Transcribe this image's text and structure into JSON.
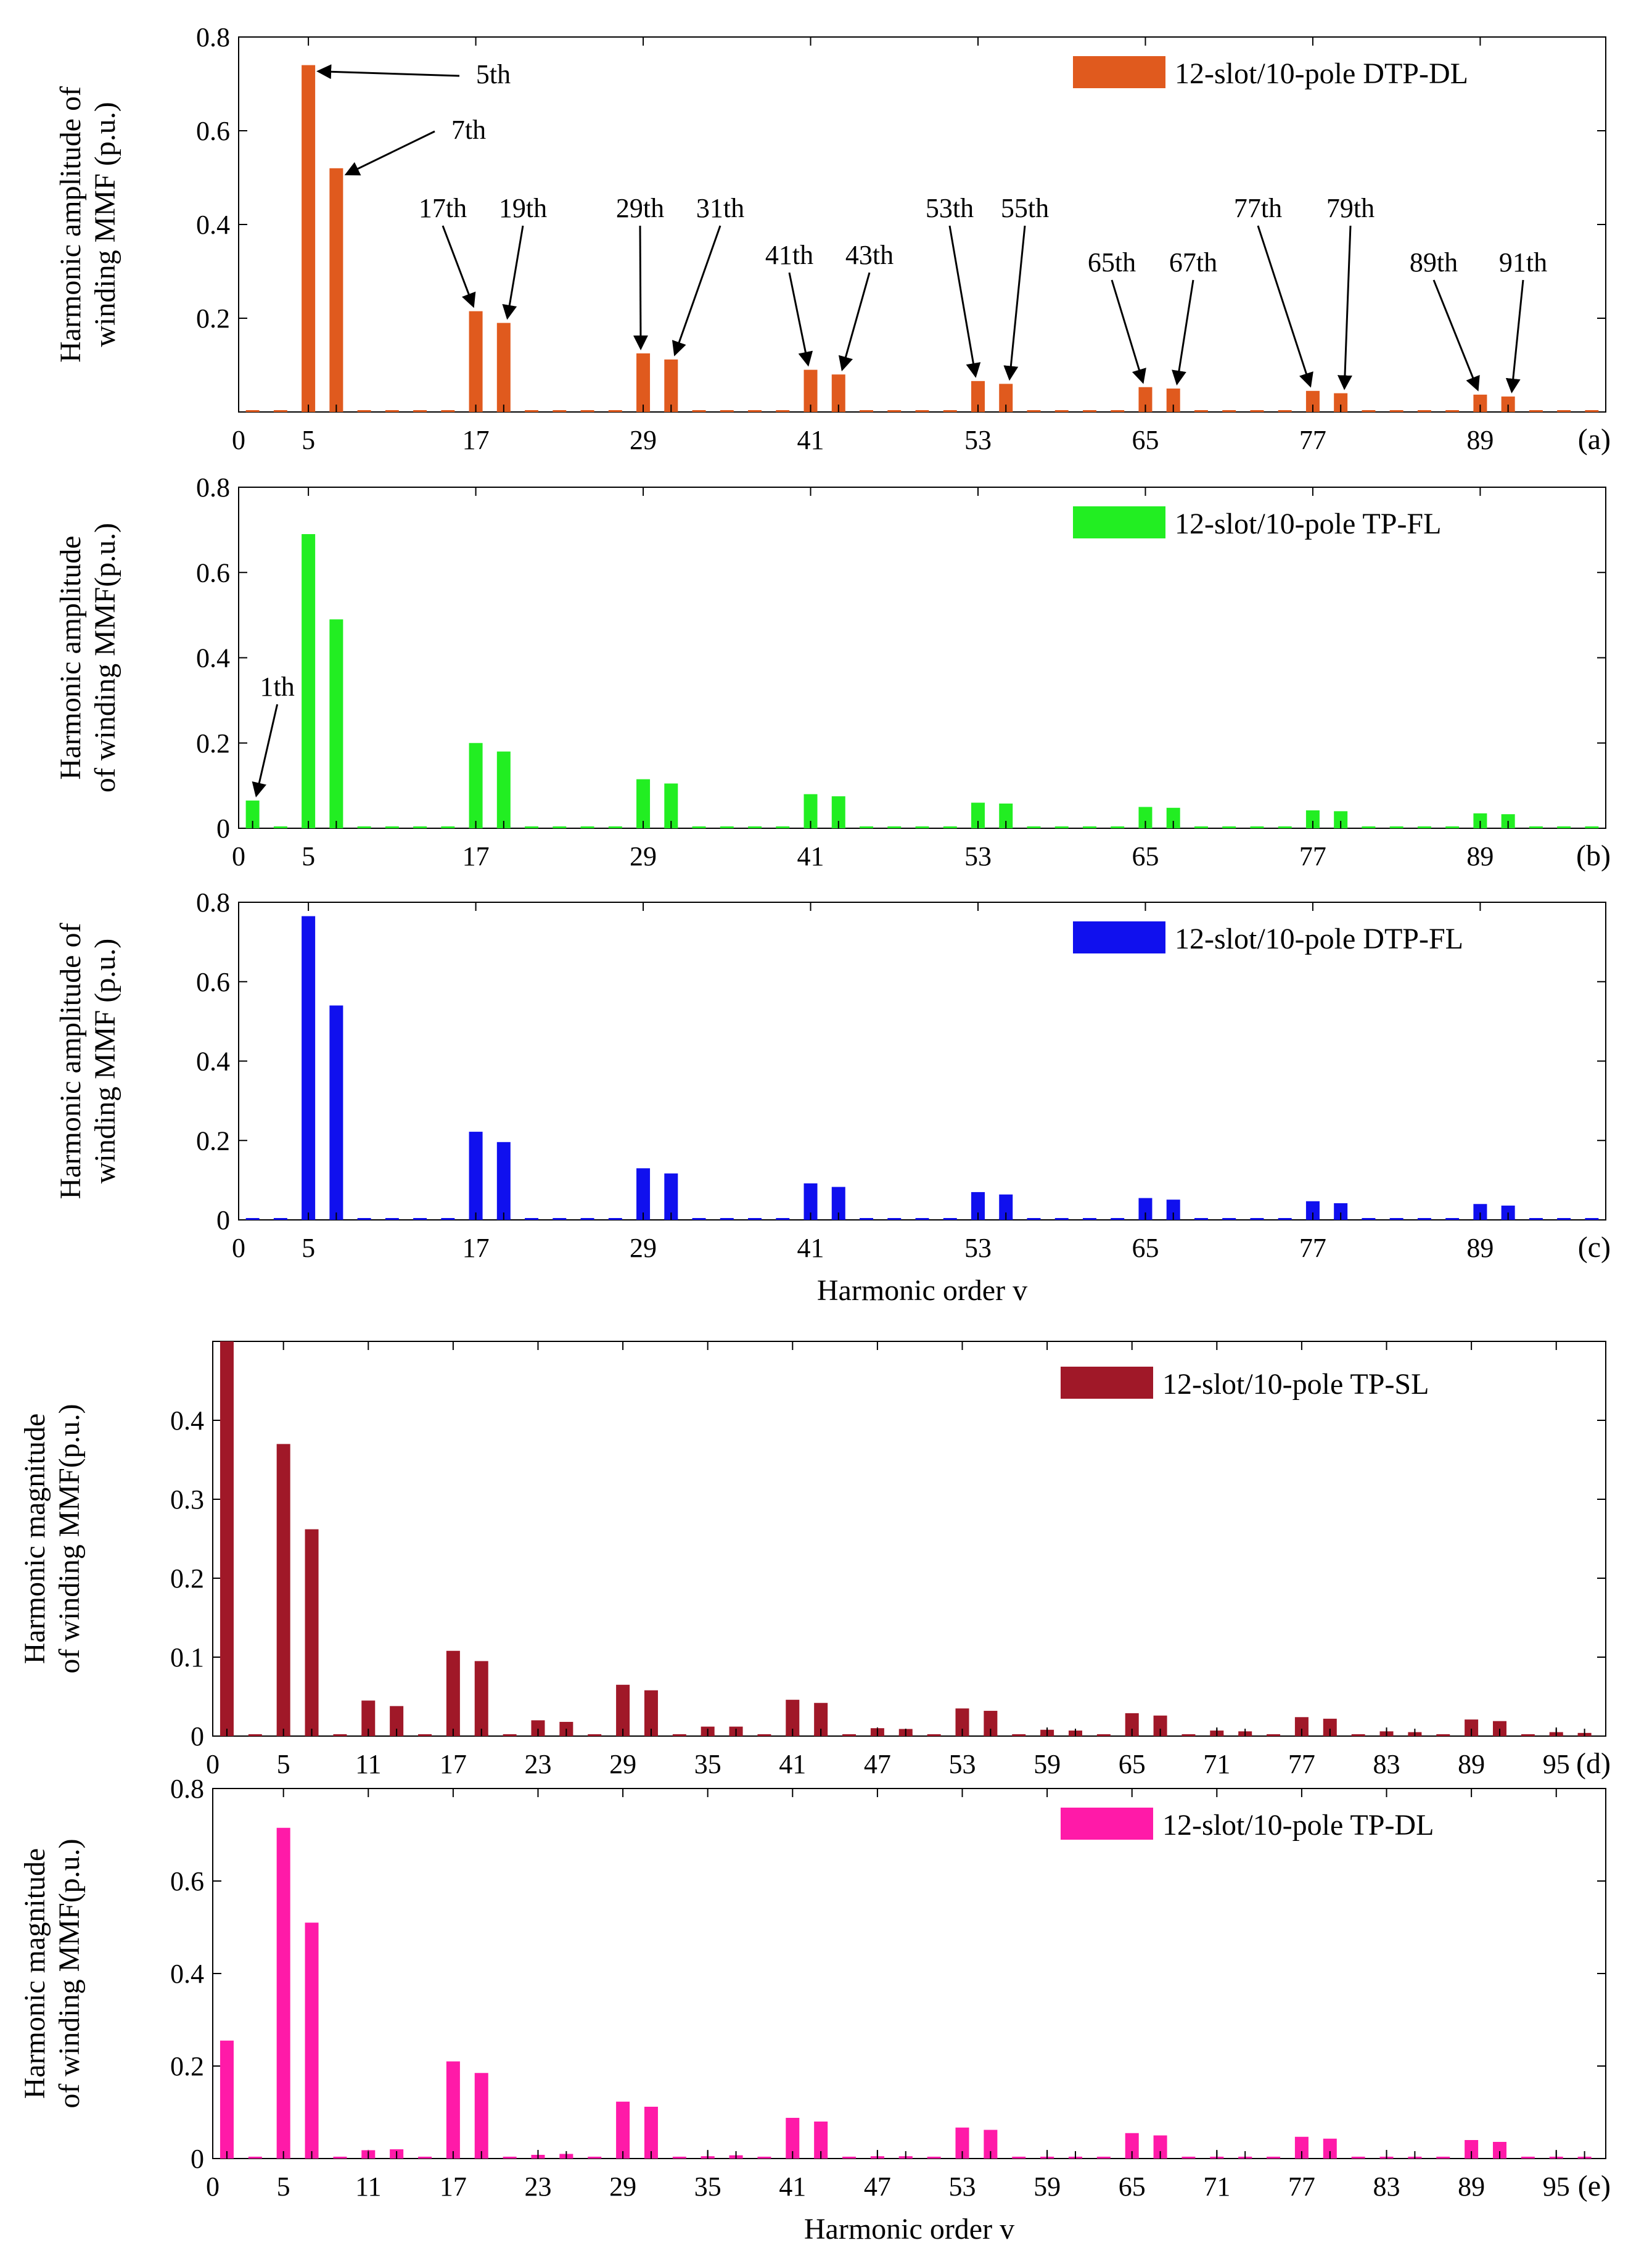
{
  "chart_data": [
    {
      "id": "a",
      "type": "bar",
      "panel_label": "(a)",
      "legend": "12-slot/10-pole DTP-DL",
      "color": "#E05A1E",
      "ylabel_lines": [
        "Harmonic amplitude of",
        "winding MMF (p.u.)"
      ],
      "xlabel": "",
      "xlim": [
        0,
        98
      ],
      "ylim": [
        0,
        0.8
      ],
      "yticks": [
        0.2,
        0.4,
        0.6,
        0.8
      ],
      "ytick_labels": [
        "0.2",
        "0.4",
        "0.6",
        "0.8"
      ],
      "xticks": [
        0,
        5,
        17,
        29,
        41,
        53,
        65,
        77,
        89
      ],
      "xtick_labels": [
        "0",
        "5",
        "17",
        "29",
        "41",
        "53",
        "65",
        "77",
        "89"
      ],
      "bars": [
        [
          5,
          0.74
        ],
        [
          7,
          0.52
        ],
        [
          17,
          0.215
        ],
        [
          19,
          0.19
        ],
        [
          29,
          0.125
        ],
        [
          31,
          0.112
        ],
        [
          41,
          0.09
        ],
        [
          43,
          0.08
        ],
        [
          53,
          0.066
        ],
        [
          55,
          0.06
        ],
        [
          65,
          0.053
        ],
        [
          67,
          0.05
        ],
        [
          77,
          0.045
        ],
        [
          79,
          0.04
        ],
        [
          89,
          0.037
        ],
        [
          91,
          0.033
        ]
      ],
      "annotations": [
        {
          "text": "5th",
          "x": 5
        },
        {
          "text": "7th",
          "x": 7
        },
        {
          "text": "17th",
          "x": 17
        },
        {
          "text": "19th",
          "x": 19
        },
        {
          "text": "29th",
          "x": 29
        },
        {
          "text": "31th",
          "x": 31
        },
        {
          "text": "41th",
          "x": 41
        },
        {
          "text": "43th",
          "x": 43
        },
        {
          "text": "53th",
          "x": 53
        },
        {
          "text": "55th",
          "x": 55
        },
        {
          "text": "65th",
          "x": 65
        },
        {
          "text": "67th",
          "x": 67
        },
        {
          "text": "77th",
          "x": 77
        },
        {
          "text": "79th",
          "x": 79
        },
        {
          "text": "89th",
          "x": 89
        },
        {
          "text": "91th",
          "x": 91
        }
      ]
    },
    {
      "id": "b",
      "type": "bar",
      "panel_label": "(b)",
      "legend": "12-slot/10-pole TP-FL",
      "color": "#22EE22",
      "ylabel_lines": [
        "Harmonic amplitude",
        "of winding MMF(p.u.)"
      ],
      "xlabel": "",
      "xlim": [
        0,
        98
      ],
      "ylim": [
        0,
        0.8
      ],
      "yticks": [
        0,
        0.2,
        0.4,
        0.6,
        0.8
      ],
      "ytick_labels": [
        "0",
        "0.2",
        "0.4",
        "0.6",
        "0.8"
      ],
      "xticks": [
        0,
        5,
        17,
        29,
        41,
        53,
        65,
        77,
        89
      ],
      "xtick_labels": [
        "0",
        "5",
        "17",
        "29",
        "41",
        "53",
        "65",
        "77",
        "89"
      ],
      "bars": [
        [
          1,
          0.065
        ],
        [
          5,
          0.69
        ],
        [
          7,
          0.49
        ],
        [
          17,
          0.2
        ],
        [
          19,
          0.18
        ],
        [
          29,
          0.115
        ],
        [
          31,
          0.105
        ],
        [
          41,
          0.08
        ],
        [
          43,
          0.075
        ],
        [
          53,
          0.06
        ],
        [
          55,
          0.058
        ],
        [
          65,
          0.05
        ],
        [
          67,
          0.048
        ],
        [
          77,
          0.042
        ],
        [
          79,
          0.04
        ],
        [
          89,
          0.035
        ],
        [
          91,
          0.033
        ]
      ],
      "annotations": [
        {
          "text": "1th",
          "x": 1
        }
      ]
    },
    {
      "id": "c",
      "type": "bar",
      "panel_label": "(c)",
      "legend": "12-slot/10-pole DTP-FL",
      "color": "#1010EE",
      "ylabel_lines": [
        "Harmonic amplitude of",
        "winding MMF (p.u.)"
      ],
      "xlabel": "Harmonic order v",
      "xlim": [
        0,
        98
      ],
      "ylim": [
        0,
        0.8
      ],
      "yticks": [
        0,
        0.2,
        0.4,
        0.6,
        0.8
      ],
      "ytick_labels": [
        "0",
        "0.2",
        "0.4",
        "0.6",
        "0.8"
      ],
      "xticks": [
        0,
        5,
        17,
        29,
        41,
        53,
        65,
        77,
        89
      ],
      "xtick_labels": [
        "0",
        "5",
        "17",
        "29",
        "41",
        "53",
        "65",
        "77",
        "89"
      ],
      "bars": [
        [
          5,
          0.765
        ],
        [
          7,
          0.54
        ],
        [
          17,
          0.222
        ],
        [
          19,
          0.196
        ],
        [
          29,
          0.13
        ],
        [
          31,
          0.117
        ],
        [
          41,
          0.092
        ],
        [
          43,
          0.083
        ],
        [
          53,
          0.07
        ],
        [
          55,
          0.064
        ],
        [
          65,
          0.055
        ],
        [
          67,
          0.051
        ],
        [
          77,
          0.047
        ],
        [
          79,
          0.042
        ],
        [
          89,
          0.04
        ],
        [
          91,
          0.036
        ]
      ],
      "annotations": []
    },
    {
      "id": "d",
      "type": "bar",
      "panel_label": "(d)",
      "legend": "12-slot/10-pole TP-SL",
      "color": "#A01828",
      "ylabel_lines": [
        "Harmonic magnitude",
        "of winding MMF(p.u.)"
      ],
      "xlabel": "",
      "xlim": [
        0,
        98.5
      ],
      "ylim": [
        0,
        0.5
      ],
      "yticks": [
        0,
        0.1,
        0.2,
        0.3,
        0.4
      ],
      "ytick_labels": [
        "0",
        "0.1",
        "0.2",
        "0.3",
        "0.4"
      ],
      "xticks": [
        0,
        5,
        11,
        17,
        23,
        29,
        35,
        41,
        47,
        53,
        59,
        65,
        71,
        77,
        83,
        89,
        95
      ],
      "xtick_labels": [
        "0",
        "5",
        "11",
        "17",
        "23",
        "29",
        "35",
        "41",
        "47",
        "53",
        "59",
        "65",
        "71",
        "77",
        "83",
        "89",
        "95"
      ],
      "bars": [
        [
          1,
          0.5
        ],
        [
          5,
          0.37
        ],
        [
          7,
          0.262
        ],
        [
          11,
          0.045
        ],
        [
          13,
          0.038
        ],
        [
          17,
          0.108
        ],
        [
          19,
          0.095
        ],
        [
          23,
          0.02
        ],
        [
          25,
          0.018
        ],
        [
          29,
          0.065
        ],
        [
          31,
          0.058
        ],
        [
          35,
          0.012
        ],
        [
          37,
          0.012
        ],
        [
          41,
          0.046
        ],
        [
          43,
          0.042
        ],
        [
          47,
          0.01
        ],
        [
          49,
          0.009
        ],
        [
          53,
          0.035
        ],
        [
          55,
          0.032
        ],
        [
          59,
          0.008
        ],
        [
          61,
          0.007
        ],
        [
          65,
          0.029
        ],
        [
          67,
          0.026
        ],
        [
          71,
          0.007
        ],
        [
          73,
          0.006
        ],
        [
          77,
          0.024
        ],
        [
          79,
          0.022
        ],
        [
          83,
          0.006
        ],
        [
          85,
          0.005
        ],
        [
          89,
          0.021
        ],
        [
          91,
          0.019
        ],
        [
          95,
          0.005
        ],
        [
          97,
          0.004
        ]
      ],
      "annotations": []
    },
    {
      "id": "e",
      "type": "bar",
      "panel_label": "(e)",
      "legend": "12-slot/10-pole TP-DL",
      "color": "#FF1AA8",
      "ylabel_lines": [
        "Harmonic magnitude",
        "of winding MMF(p.u.)"
      ],
      "xlabel": "Harmonic order v",
      "xlim": [
        0,
        98.5
      ],
      "ylim": [
        0,
        0.8
      ],
      "yticks": [
        0,
        0.2,
        0.4,
        0.6,
        0.8
      ],
      "ytick_labels": [
        "0",
        "0.2",
        "0.4",
        "0.6",
        "0.8"
      ],
      "xticks": [
        0,
        5,
        11,
        17,
        23,
        29,
        35,
        41,
        47,
        53,
        59,
        65,
        71,
        77,
        83,
        89,
        95
      ],
      "xtick_labels": [
        "0",
        "5",
        "11",
        "17",
        "23",
        "29",
        "35",
        "41",
        "47",
        "53",
        "59",
        "65",
        "71",
        "77",
        "83",
        "89",
        "95"
      ],
      "bars": [
        [
          1,
          0.255
        ],
        [
          5,
          0.715
        ],
        [
          7,
          0.51
        ],
        [
          11,
          0.018
        ],
        [
          13,
          0.02
        ],
        [
          17,
          0.21
        ],
        [
          19,
          0.185
        ],
        [
          23,
          0.008
        ],
        [
          25,
          0.01
        ],
        [
          29,
          0.123
        ],
        [
          31,
          0.112
        ],
        [
          35,
          0.005
        ],
        [
          37,
          0.007
        ],
        [
          41,
          0.088
        ],
        [
          43,
          0.08
        ],
        [
          47,
          0.005
        ],
        [
          49,
          0.005
        ],
        [
          53,
          0.067
        ],
        [
          55,
          0.062
        ],
        [
          59,
          0.004
        ],
        [
          61,
          0.004
        ],
        [
          65,
          0.055
        ],
        [
          67,
          0.05
        ],
        [
          71,
          0.003
        ],
        [
          73,
          0.004
        ],
        [
          77,
          0.047
        ],
        [
          79,
          0.043
        ],
        [
          83,
          0.003
        ],
        [
          85,
          0.003
        ],
        [
          89,
          0.04
        ],
        [
          91,
          0.036
        ],
        [
          95,
          0.002
        ],
        [
          97,
          0.002
        ]
      ],
      "annotations": []
    }
  ]
}
